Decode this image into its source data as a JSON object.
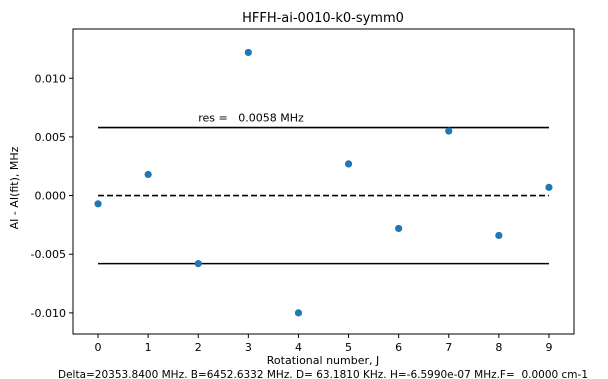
{
  "chart_data": {
    "type": "scatter",
    "title": "HFFH-ai-0010-k0-symm0",
    "xlabel": "Rotational number, J",
    "ylabel": "AI - AI(fit), MHz",
    "footer": "Delta=20353.8400 MHz. B=6452.6332 MHz. D= 63.1810 KHz. H=-6.5990e-07 MHz.F=  0.0000 cm-1",
    "xlim": [
      -0.5,
      9.5
    ],
    "ylim": [
      -0.0118,
      0.0142
    ],
    "xticks": [
      "0",
      "1",
      "2",
      "3",
      "4",
      "5",
      "6",
      "7",
      "8",
      "9"
    ],
    "yticks": [
      "0.010",
      "0.005",
      "0.000",
      "-0.005",
      "-0.010"
    ],
    "ytick_values": [
      0.01,
      0.005,
      0.0,
      -0.005,
      -0.01
    ],
    "points": {
      "x": [
        0,
        1,
        2,
        3,
        4,
        5,
        6,
        7,
        8,
        9
      ],
      "y": [
        -0.0007,
        0.0018,
        -0.0058,
        0.0122,
        -0.01,
        0.0027,
        -0.0028,
        0.0055,
        -0.0034,
        0.0007
      ],
      "color": "#1f77b4"
    },
    "reference_lines": {
      "upper": 0.0058,
      "zero": 0.0,
      "lower": -0.0058,
      "x_range": [
        0,
        9
      ]
    },
    "annotation": {
      "text": "res =   0.0058 MHz",
      "x": 2.0,
      "y": 0.0058
    }
  }
}
